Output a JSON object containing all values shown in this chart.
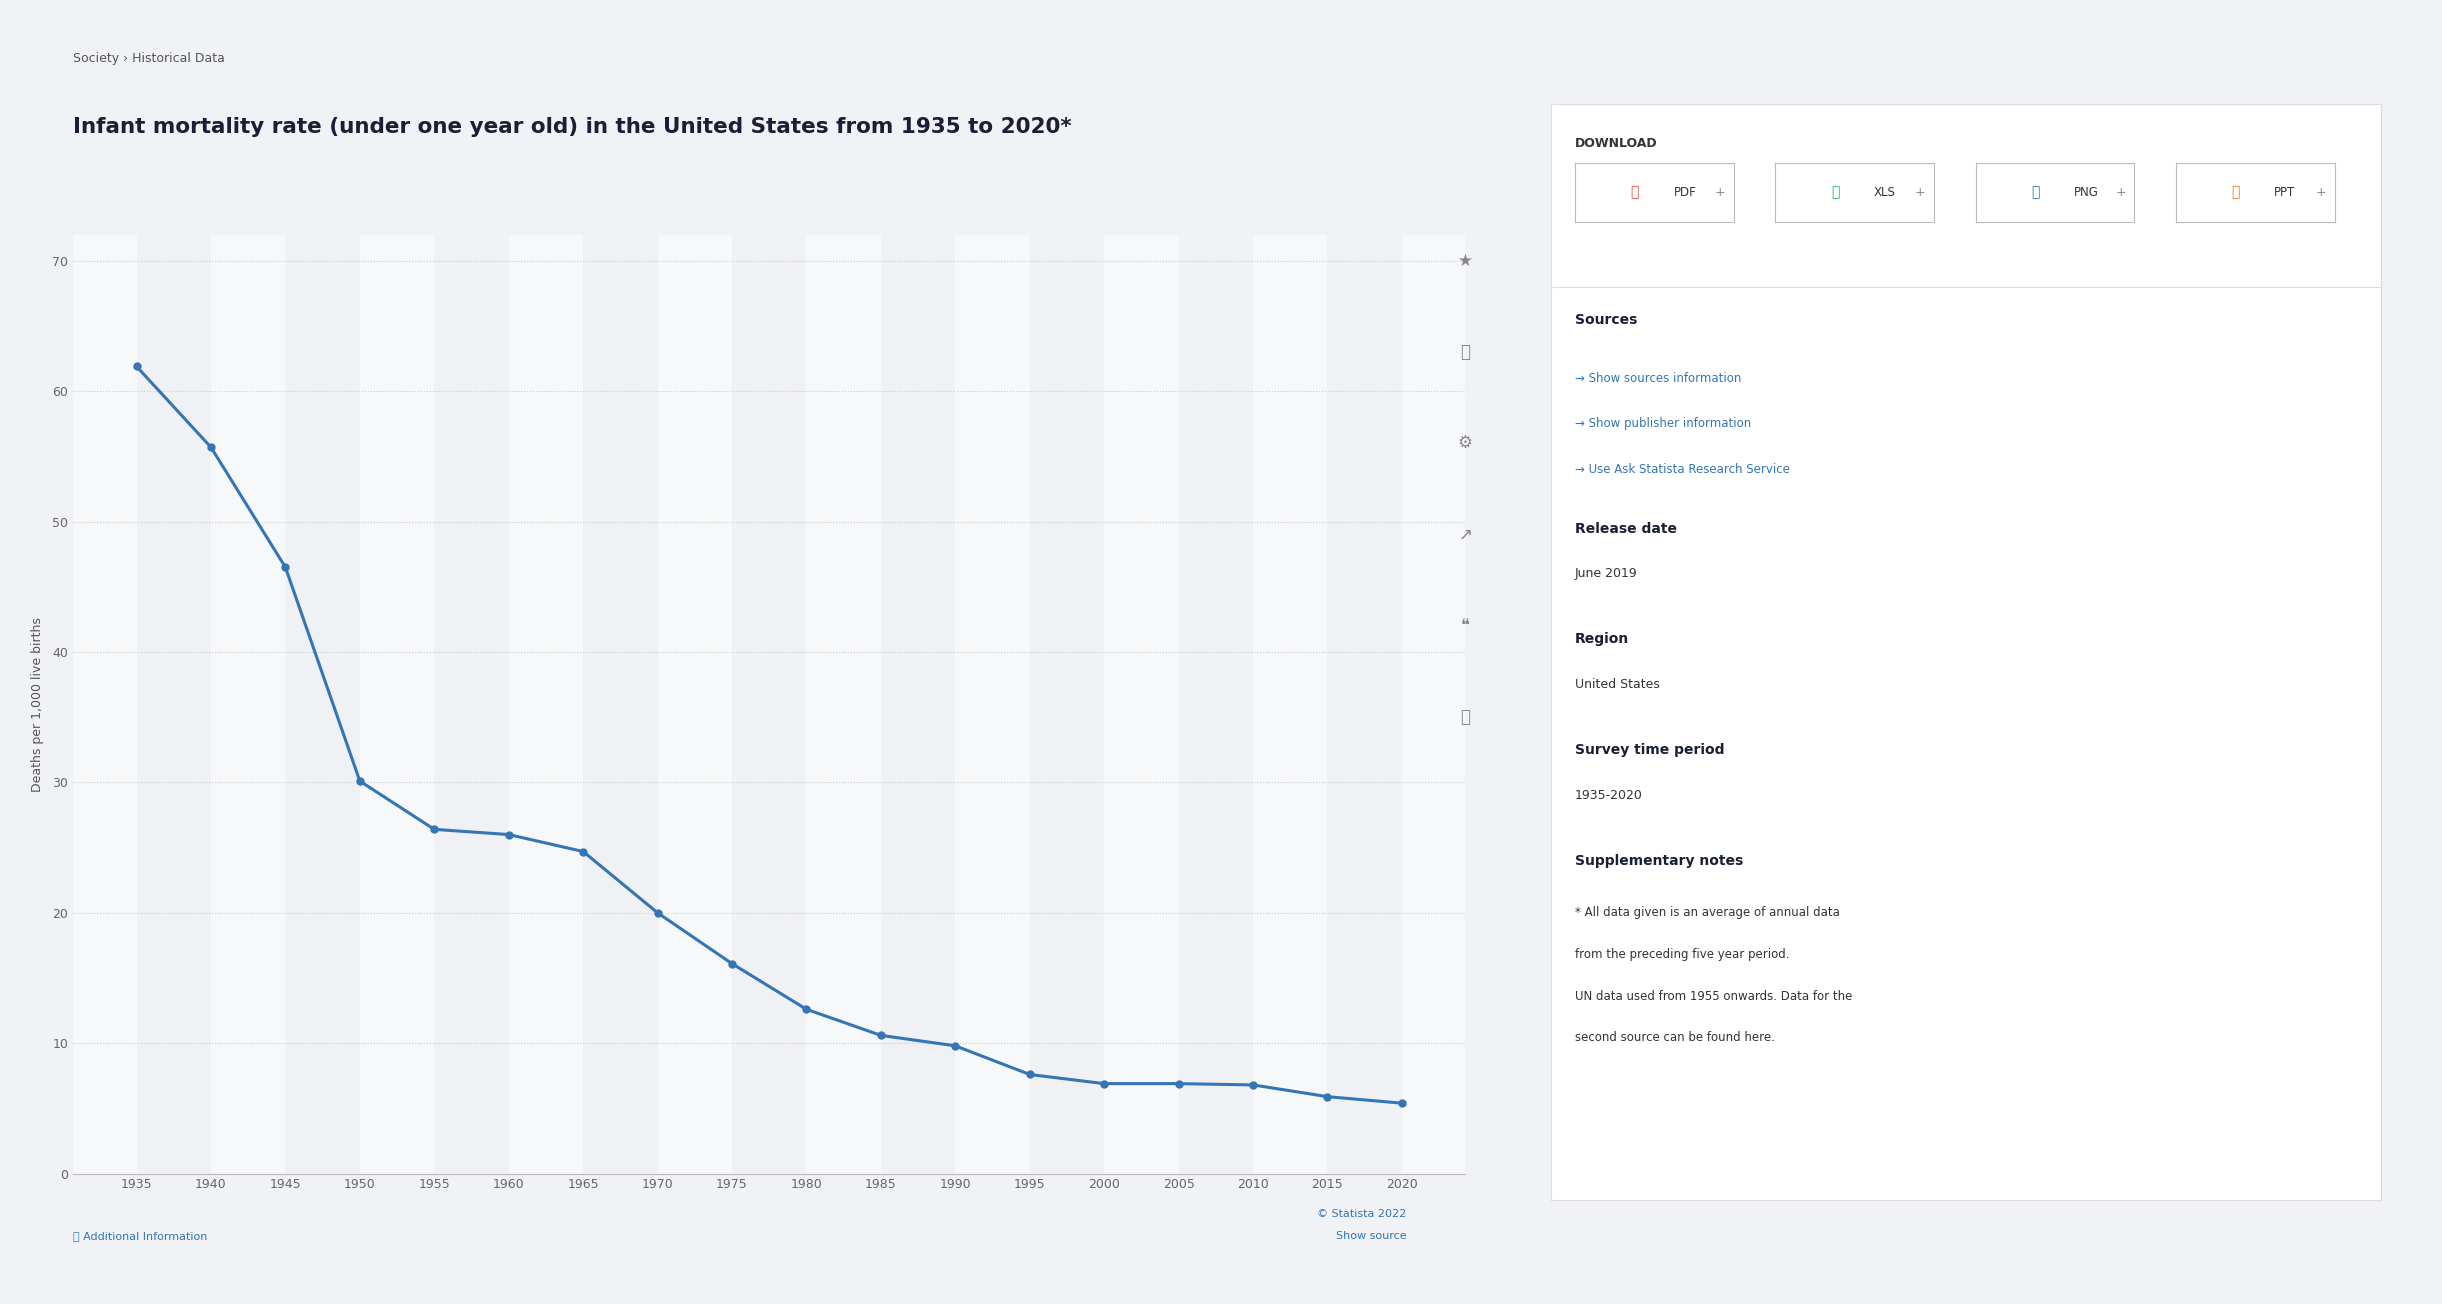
{
  "title_breadcrumb": "Society › Historical Data",
  "title": "Infant mortality rate (under one year old) in the United States from 1935 to 2020*",
  "years": [
    1935,
    1940,
    1945,
    1950,
    1955,
    1960,
    1965,
    1970,
    1975,
    1980,
    1985,
    1990,
    1995,
    2000,
    2005,
    2010,
    2015,
    2020
  ],
  "values": [
    61.9,
    55.7,
    46.5,
    30.1,
    26.4,
    26.0,
    24.7,
    20.0,
    16.1,
    12.6,
    10.6,
    9.8,
    7.6,
    6.9,
    6.9,
    6.8,
    5.9,
    5.4
  ],
  "ylabel": "Deaths per 1,000 live births",
  "ylim": [
    0,
    72
  ],
  "yticks": [
    0,
    10,
    20,
    30,
    40,
    50,
    60,
    70
  ],
  "xticks": [
    1935,
    1940,
    1945,
    1950,
    1955,
    1960,
    1965,
    1970,
    1975,
    1980,
    1985,
    1990,
    1995,
    2000,
    2005,
    2010,
    2015,
    2020
  ],
  "line_color": "#3375b5",
  "marker_color": "#3375b5",
  "chart_bg": "#f0f2f5",
  "plot_bg": "#f7f8fa",
  "grid_color": "#cccccc",
  "watermark": "© Statista 2022",
  "show_source": "Show source",
  "download_label": "DOWNLOAD",
  "sources_header": "Sources",
  "sources_items": [
    "→ Show sources information",
    "→ Show publisher information",
    "→ Use Ask Statista Research Service"
  ],
  "release_date_label": "Release date",
  "release_date": "June 2019",
  "region_label": "Region",
  "region": "United States",
  "survey_period_label": "Survey time period",
  "survey_period": "1935-2020",
  "supplementary_label": "Supplementary notes",
  "supplementary_text": "* All data given is an average of annual data from the preceding five year period.\nUN data used from 1955 onwards. Data for the second source can be found here.",
  "additional_info": "ⓘ Additional Information"
}
